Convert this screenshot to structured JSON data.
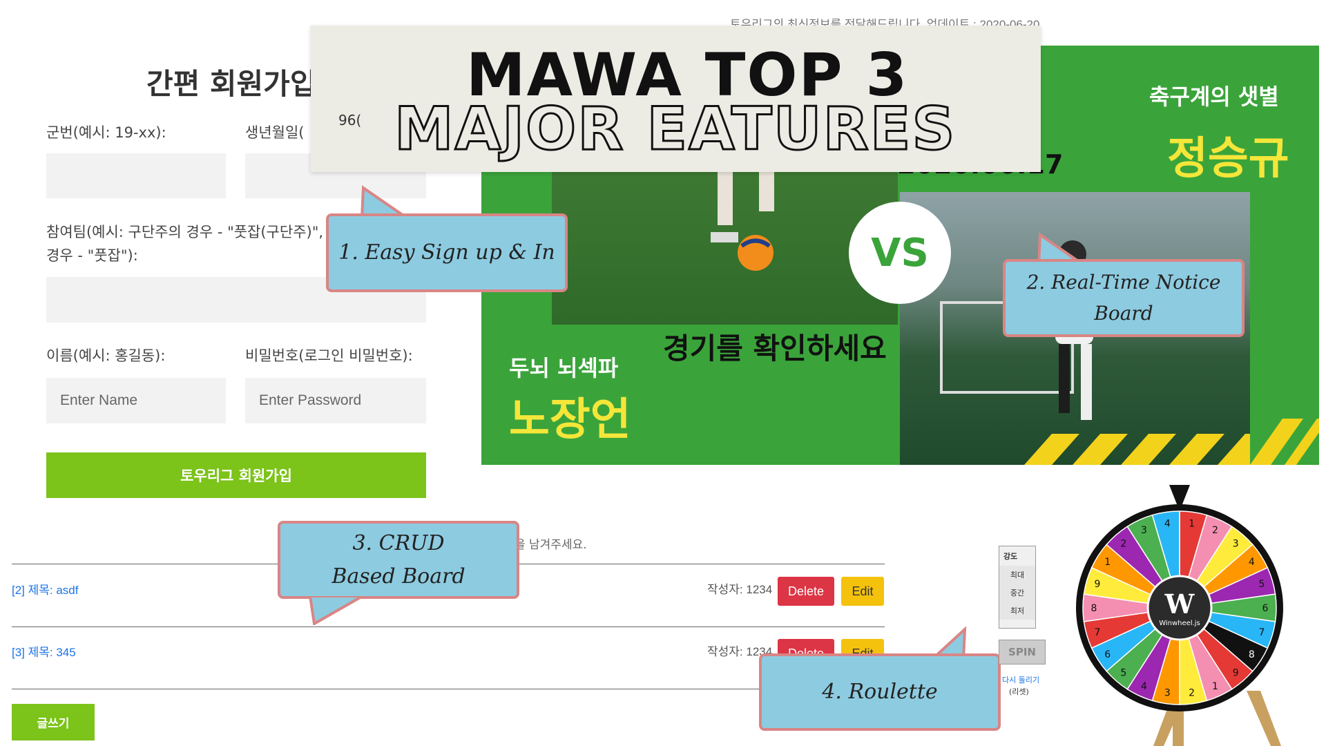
{
  "signup": {
    "title": "간편 회원가입",
    "label_unit": "군번(예시: 19-xx):",
    "label_birth": "생년월일(",
    "label_team": "참여팀(예시: 구단주의 경우 - \"풋잡(구단주)\", -",
    "label_team_line2": "경우 - \"풋잡\"):",
    "label_name": "이름(예시: 홍길동):",
    "label_password": "비밀번호(로그인 비밀번호):",
    "name_placeholder": "Enter Name",
    "password_placeholder": "Enter Password",
    "submit_label": "토우리그 회원가입"
  },
  "title_card": {
    "line1": "MAWA TOP 3",
    "line2": "MAJOR EATURES",
    "torn_fragment": "96("
  },
  "top_line": "토우리그의 최신정보를 전달해드립니다. 업데이트 : 2020-06-20",
  "notice_banner": {
    "date": "2020.06.17",
    "vs": "VS",
    "headline": "경기를 확인하세요",
    "left_team_small": "두뇌 뇌섹파",
    "left_team_big": "노장언",
    "right_team_small": "축구계의 샛별",
    "right_team_big": "정승규"
  },
  "callouts": [
    {
      "text": "1. Easy Sign up & In"
    },
    {
      "text": "2. Real-Time Notice Board"
    },
    {
      "text": "3. CRUD Based Board"
    },
    {
      "text": "4. Roulette"
    }
  ],
  "board": {
    "intro_fragment": "을 남겨주세요.",
    "posts": [
      {
        "title": "[2] 제목: asdf",
        "author": "작성자: 1234",
        "delete_label": "Delete",
        "edit_label": "Edit"
      },
      {
        "title": "[3] 제목: 345",
        "author": "작성자: 1234",
        "delete_label": "Delete",
        "edit_label": "Edit"
      }
    ],
    "write_label": "글쓰기"
  },
  "roulette": {
    "strength_title": "강도",
    "strength_options": [
      "최대",
      "중간",
      "최저"
    ],
    "spin_label": "SPIN",
    "reset_line1": "다시 돌리기",
    "reset_line2": "(리셋)",
    "logo_letter": "W",
    "logo_text": "Winwheel.js",
    "segments": [
      "1",
      "2",
      "3",
      "4",
      "5",
      "6",
      "7",
      "8",
      "9",
      "1",
      "2",
      "3",
      "4",
      "5",
      "6",
      "7",
      "8",
      "9",
      "1",
      "2",
      "3",
      "4"
    ],
    "segment_colors": [
      "#e53935",
      "#f48fb1",
      "#ffeb3b",
      "#ff9800",
      "#9c27b0",
      "#4caf50",
      "#29b6f6",
      "#111111",
      "#e53935",
      "#f48fb1",
      "#ffeb3b",
      "#ff9800",
      "#9c27b0",
      "#4caf50",
      "#29b6f6",
      "#e53935",
      "#f48fb1",
      "#ffeb3b",
      "#ff9800",
      "#9c27b0",
      "#4caf50",
      "#29b6f6"
    ]
  },
  "colors": {
    "green_button": "#7cc31a",
    "banner_green": "#3aa43a",
    "callout_fill": "#8dcbe0",
    "callout_border": "#d98585",
    "delete_red": "#dc3545",
    "edit_yellow": "#f4c20d"
  }
}
